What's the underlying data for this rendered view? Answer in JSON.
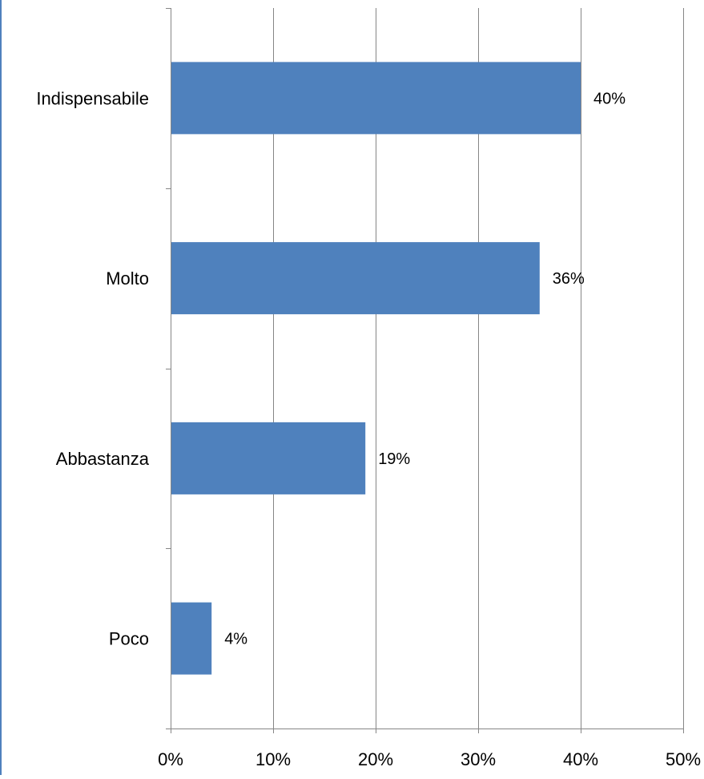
{
  "colors": {
    "bar": "#4F81BD",
    "grid": "#868686",
    "axis": "#868686",
    "text": "#000000",
    "frame_edge": "#4F81BD"
  },
  "chart_data": {
    "type": "bar",
    "orientation": "horizontal",
    "title": "",
    "xlabel": "",
    "ylabel": "",
    "categories": [
      "Indispensabile",
      "Molto",
      "Abbastanza",
      "Poco"
    ],
    "values": [
      40,
      36,
      19,
      4
    ],
    "value_labels": [
      "40%",
      "36%",
      "19%",
      "4%"
    ],
    "xlim": [
      0,
      50
    ],
    "x_ticks": [
      0,
      10,
      20,
      30,
      40,
      50
    ],
    "x_tick_labels": [
      "0%",
      "10%",
      "20%",
      "30%",
      "40%",
      "50%"
    ],
    "grid": true,
    "legend": "none"
  }
}
